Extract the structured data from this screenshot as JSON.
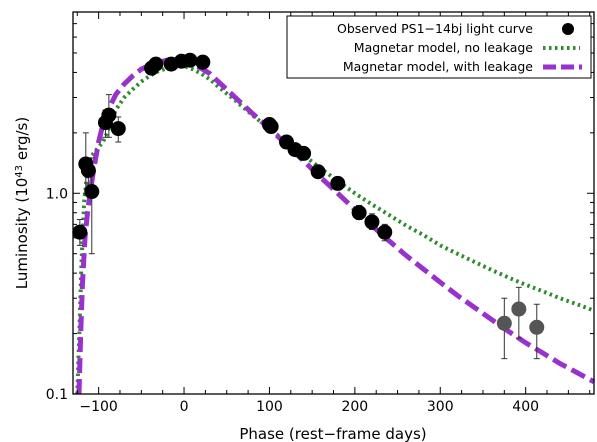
{
  "chart_data": {
    "type": "scatter",
    "xlabel": "Phase (rest−frame days)",
    "ylabel": "Luminosity (10",
    "ylabel_sup": "43",
    "ylabel_tail": " erg/s)",
    "xlim": [
      -130,
      480
    ],
    "ylim": [
      0.1,
      8
    ],
    "yscale": "log",
    "x_ticks": [
      -100,
      0,
      100,
      200,
      300,
      400
    ],
    "x_tick_labels": [
      "−100",
      "0",
      "100",
      "200",
      "300",
      "400"
    ],
    "y_ticks": [
      0.1,
      1.0
    ],
    "y_tick_labels": [
      "0.1",
      "1.0"
    ],
    "legend_position": "top-right",
    "series": [
      {
        "name": "Observed PS1−14bj light curve",
        "kind": "points",
        "color": "#000000",
        "points": [
          {
            "x": -122,
            "y": 0.64,
            "ylo": 0.55,
            "yhi": 0.74
          },
          {
            "x": -115,
            "y": 1.4,
            "ylo": 1.0,
            "yhi": 2.0
          },
          {
            "x": -112,
            "y": 1.3,
            "ylo": 1.1,
            "yhi": 1.5
          },
          {
            "x": -108,
            "y": 1.02,
            "ylo": 0.5,
            "yhi": 1.5
          },
          {
            "x": -92,
            "y": 2.25,
            "ylo": 1.9,
            "yhi": 2.6
          },
          {
            "x": -88,
            "y": 2.45,
            "ylo": 1.9,
            "yhi": 3.1
          },
          {
            "x": -77,
            "y": 2.1,
            "ylo": 1.8,
            "yhi": 2.4
          },
          {
            "x": -38,
            "y": 4.2,
            "ylo": 4.0,
            "yhi": 4.4
          },
          {
            "x": -33,
            "y": 4.4,
            "ylo": 4.2,
            "yhi": 4.6
          },
          {
            "x": -15,
            "y": 4.4,
            "ylo": 4.2,
            "yhi": 4.6
          },
          {
            "x": -3,
            "y": 4.55,
            "ylo": 4.35,
            "yhi": 4.75
          },
          {
            "x": 7,
            "y": 4.6,
            "ylo": 4.4,
            "yhi": 4.8
          },
          {
            "x": 22,
            "y": 4.5,
            "ylo": 4.3,
            "yhi": 4.7
          },
          {
            "x": 100,
            "y": 2.2,
            "ylo": 2.1,
            "yhi": 2.3
          },
          {
            "x": 102,
            "y": 2.15,
            "ylo": 2.05,
            "yhi": 2.25
          },
          {
            "x": 120,
            "y": 1.8,
            "ylo": 1.7,
            "yhi": 1.9
          },
          {
            "x": 130,
            "y": 1.65,
            "ylo": 1.55,
            "yhi": 1.75
          },
          {
            "x": 140,
            "y": 1.58,
            "ylo": 1.48,
            "yhi": 1.68
          },
          {
            "x": 157,
            "y": 1.28,
            "ylo": 1.2,
            "yhi": 1.36
          },
          {
            "x": 180,
            "y": 1.12,
            "ylo": 1.04,
            "yhi": 1.2
          },
          {
            "x": 205,
            "y": 0.8,
            "ylo": 0.74,
            "yhi": 0.87
          },
          {
            "x": 220,
            "y": 0.72,
            "ylo": 0.66,
            "yhi": 0.79
          },
          {
            "x": 235,
            "y": 0.64,
            "ylo": 0.58,
            "yhi": 0.7
          }
        ]
      },
      {
        "name": "",
        "kind": "points",
        "color": "#555555",
        "points": [
          {
            "x": 375,
            "y": 0.225,
            "ylo": 0.15,
            "yhi": 0.3
          },
          {
            "x": 392,
            "y": 0.265,
            "ylo": 0.19,
            "yhi": 0.34
          },
          {
            "x": 413,
            "y": 0.215,
            "ylo": 0.15,
            "yhi": 0.28
          }
        ]
      },
      {
        "name": "Magnetar model, no leakage",
        "kind": "line",
        "style": "dotted",
        "color": "#2e8b2e",
        "x": [
          -125,
          -122,
          -120,
          -117,
          -113,
          -110,
          -105,
          -100,
          -95,
          -90,
          -85,
          -80,
          -70,
          -60,
          -50,
          -40,
          -30,
          -20,
          -10,
          0,
          10,
          20,
          30,
          40,
          60,
          80,
          100,
          120,
          140,
          160,
          180,
          200,
          220,
          240,
          260,
          280,
          300,
          320,
          340,
          360,
          380,
          400,
          420,
          440,
          460,
          480
        ],
        "y": [
          0.1,
          0.24,
          0.45,
          0.9,
          1.3,
          1.5,
          1.6,
          1.7,
          1.8,
          2.0,
          2.3,
          2.6,
          3.0,
          3.3,
          3.6,
          3.85,
          4.05,
          4.2,
          4.3,
          4.3,
          4.15,
          3.95,
          3.7,
          3.4,
          2.9,
          2.45,
          2.1,
          1.8,
          1.55,
          1.33,
          1.15,
          1.0,
          0.88,
          0.78,
          0.69,
          0.62,
          0.55,
          0.5,
          0.455,
          0.415,
          0.38,
          0.35,
          0.325,
          0.3,
          0.28,
          0.26
        ]
      },
      {
        "name": "Magnetar model, with leakage",
        "kind": "line",
        "style": "dashed",
        "color": "#9932cc",
        "x": [
          -123,
          -121,
          -119,
          -116,
          -113,
          -110,
          -106,
          -100,
          -95,
          -90,
          -85,
          -80,
          -70,
          -60,
          -50,
          -40,
          -30,
          -20,
          -10,
          0,
          10,
          20,
          30,
          40,
          60,
          80,
          100,
          120,
          140,
          160,
          180,
          200,
          220,
          240,
          260,
          280,
          300,
          320,
          340,
          360,
          380,
          400,
          420,
          440,
          460,
          480
        ],
        "y": [
          0.1,
          0.2,
          0.35,
          0.6,
          0.8,
          1.0,
          1.3,
          1.8,
          2.2,
          2.5,
          2.8,
          3.1,
          3.5,
          3.85,
          4.15,
          4.35,
          4.5,
          4.6,
          4.6,
          4.55,
          4.4,
          4.2,
          3.95,
          3.6,
          3.0,
          2.5,
          2.1,
          1.75,
          1.45,
          1.2,
          1.0,
          0.83,
          0.69,
          0.58,
          0.49,
          0.42,
          0.36,
          0.31,
          0.27,
          0.235,
          0.205,
          0.18,
          0.16,
          0.142,
          0.128,
          0.115
        ]
      }
    ]
  }
}
